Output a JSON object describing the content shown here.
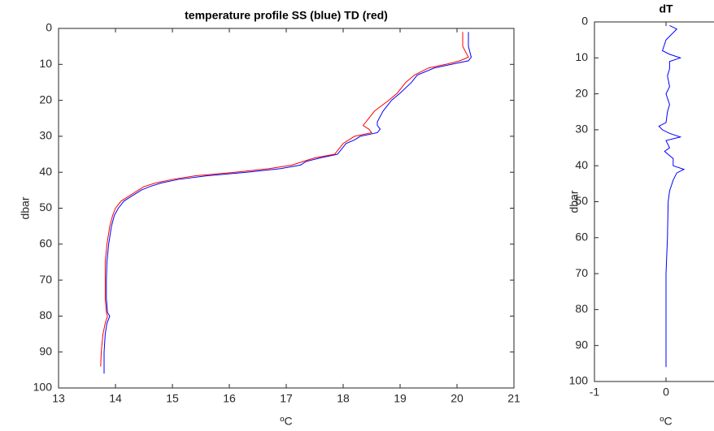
{
  "chart_data": [
    {
      "type": "line",
      "value_axis": "x",
      "y_inverted": true,
      "title": "temperature profile SS (blue) TD (red)",
      "xlabel": "ºC",
      "ylabel": "dbar",
      "xlim": [
        13,
        21
      ],
      "xticks": [
        13,
        14,
        15,
        16,
        17,
        18,
        19,
        20,
        21
      ],
      "ylim": [
        0,
        100
      ],
      "yticks": [
        0,
        10,
        20,
        30,
        40,
        50,
        60,
        70,
        80,
        90,
        100
      ],
      "y": [
        1,
        5,
        8,
        9,
        10,
        11,
        13,
        15,
        18,
        20,
        23,
        26,
        27,
        28,
        29,
        30,
        31,
        32,
        33,
        35,
        36,
        37,
        38,
        39,
        40,
        41,
        42,
        43,
        44,
        45,
        46,
        47,
        48,
        50,
        52,
        55,
        60,
        65,
        70,
        75,
        79,
        80,
        82,
        85,
        90,
        94,
        96
      ],
      "series": [
        {
          "color": "#0000ff",
          "values": [
            20.2,
            20.2,
            20.25,
            20.2,
            19.9,
            19.6,
            19.3,
            19.2,
            19.0,
            18.85,
            18.7,
            18.6,
            18.6,
            18.65,
            18.6,
            18.3,
            18.2,
            18.05,
            18.0,
            17.9,
            17.6,
            17.35,
            17.25,
            16.9,
            16.3,
            15.6,
            15.1,
            14.8,
            14.6,
            14.45,
            14.35,
            14.25,
            14.15,
            14.05,
            13.98,
            13.93,
            13.88,
            13.85,
            13.84,
            13.84,
            13.86,
            13.9,
            13.85,
            13.82,
            13.8,
            13.8,
            13.8
          ]
        },
        {
          "color": "#ff0000",
          "values": [
            20.1,
            20.1,
            20.2,
            20.05,
            19.8,
            19.5,
            19.25,
            19.1,
            18.95,
            18.8,
            18.55,
            18.4,
            18.35,
            18.45,
            18.5,
            18.2,
            18.1,
            18.0,
            17.95,
            17.85,
            17.5,
            17.3,
            17.1,
            16.7,
            16.1,
            15.4,
            15.0,
            14.7,
            14.5,
            14.4,
            14.3,
            14.2,
            14.1,
            14.0,
            13.95,
            13.9,
            13.85,
            13.82,
            13.82,
            13.82,
            13.84,
            13.86,
            13.82,
            13.78,
            13.75,
            13.74,
            null
          ]
        }
      ]
    },
    {
      "type": "line",
      "value_axis": "x",
      "y_inverted": true,
      "title": "dT",
      "xlabel": "ºC",
      "ylabel": "dbar",
      "xlim": [
        -1,
        1
      ],
      "xticks": [
        -1,
        0
      ],
      "ylim": [
        0,
        100
      ],
      "yticks": [
        0,
        10,
        20,
        30,
        40,
        50,
        60,
        70,
        80,
        90,
        100
      ],
      "y": [
        1,
        2,
        5,
        8,
        9,
        10,
        11,
        13,
        15,
        18,
        20,
        23,
        25,
        28,
        29,
        30,
        31,
        32,
        33,
        35,
        36,
        38,
        40,
        41,
        42,
        44,
        47,
        50,
        60,
        70,
        80,
        90,
        96
      ],
      "series": [
        {
          "color": "#0000ff",
          "values": [
            0.05,
            0.15,
            0.0,
            -0.05,
            0.05,
            0.2,
            0.05,
            0.05,
            0.02,
            0.05,
            0.0,
            0.05,
            0.02,
            0.0,
            -0.1,
            -0.05,
            0.05,
            0.2,
            0.0,
            0.05,
            -0.02,
            0.1,
            0.1,
            0.25,
            0.15,
            0.1,
            0.05,
            0.03,
            0.02,
            0.0,
            0.0,
            0.0,
            0.0
          ]
        }
      ]
    }
  ]
}
